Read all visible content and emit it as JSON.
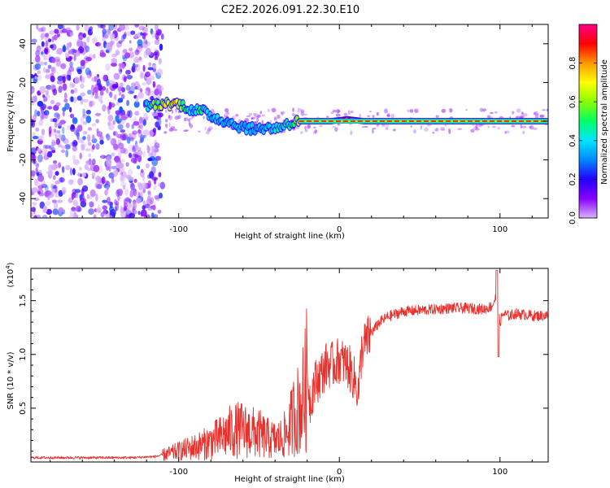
{
  "figure_title": "C2E2.2026.091.22.30.E10",
  "chart_data": [
    {
      "type": "heatmap",
      "title": "C2E2.2026.091.22.30.E10",
      "xlabel": "Height of straight line (km)",
      "ylabel": "Frequency (Hz)",
      "xlim": [
        -192,
        130
      ],
      "ylim": [
        -50,
        50
      ],
      "xticks": [
        -100,
        0,
        100
      ],
      "xtick_labels": [
        "-100",
        "0",
        "100"
      ],
      "yticks": [
        -40,
        -20,
        0,
        20,
        40
      ],
      "ytick_labels": [
        "-40",
        "-20",
        "0",
        "20",
        "40"
      ],
      "colorbar": {
        "label": "Normalized spectral amplitude",
        "range": [
          0.0,
          1.0
        ],
        "ticks": [
          0.0,
          0.2,
          0.4,
          0.6,
          0.8
        ],
        "tick_labels": [
          "0.0",
          "0.2",
          "0.4",
          "0.6",
          "0.8"
        ],
        "colormap": [
          "#d9b3ff",
          "#8800ff",
          "#2200ff",
          "#0088ff",
          "#00e5ff",
          "#00ff66",
          "#88ff00",
          "#ffff00",
          "#ff9900",
          "#ff0000",
          "#ff0088"
        ]
      },
      "noise_region_x": [
        -192,
        -110
      ],
      "ridge": [
        {
          "x": -120,
          "freq": 8,
          "amp": 0.45
        },
        {
          "x": -110,
          "freq": 9,
          "amp": 0.7
        },
        {
          "x": -100,
          "freq": 9,
          "amp": 0.72
        },
        {
          "x": -92,
          "freq": 6,
          "amp": 0.4
        },
        {
          "x": -85,
          "freq": 5,
          "amp": 0.55
        },
        {
          "x": -80,
          "freq": 3,
          "amp": 0.4
        },
        {
          "x": -75,
          "freq": 1,
          "amp": 0.45
        },
        {
          "x": -70,
          "freq": 0,
          "amp": 0.4
        },
        {
          "x": -65,
          "freq": -2,
          "amp": 0.45
        },
        {
          "x": -60,
          "freq": -3,
          "amp": 0.4
        },
        {
          "x": -55,
          "freq": -4,
          "amp": 0.4
        },
        {
          "x": -50,
          "freq": -4,
          "amp": 0.4
        },
        {
          "x": -45,
          "freq": -3,
          "amp": 0.45
        },
        {
          "x": -40,
          "freq": -4,
          "amp": 0.45
        },
        {
          "x": -35,
          "freq": -2,
          "amp": 0.5
        },
        {
          "x": -30,
          "freq": -1,
          "amp": 0.5
        },
        {
          "x": -25,
          "freq": 0,
          "amp": 0.8
        },
        {
          "x": -15,
          "freq": 0,
          "amp": 0.85
        },
        {
          "x": -5,
          "freq": 0,
          "amp": 0.88
        },
        {
          "x": 5,
          "freq": 1,
          "amp": 0.9
        },
        {
          "x": 15,
          "freq": 0,
          "amp": 0.88
        },
        {
          "x": 30,
          "freq": 0,
          "amp": 0.9
        },
        {
          "x": 50,
          "freq": 0,
          "amp": 0.9
        },
        {
          "x": 70,
          "freq": 0,
          "amp": 0.9
        },
        {
          "x": 90,
          "freq": 0,
          "amp": 0.9
        },
        {
          "x": 110,
          "freq": 0,
          "amp": 0.9
        },
        {
          "x": 130,
          "freq": 0,
          "amp": 0.9
        }
      ]
    },
    {
      "type": "line",
      "xlabel": "Height of straight line (km)",
      "ylabel": "SNR (10 * v/v)",
      "y_multiplier_label": "(x10",
      "y_multiplier_exp": "4",
      "xlim": [
        -192,
        130
      ],
      "ylim": [
        0,
        1.8
      ],
      "xticks": [
        -100,
        0,
        100
      ],
      "xtick_labels": [
        "-100",
        "0",
        "100"
      ],
      "yticks": [
        0.5,
        1.0,
        1.5
      ],
      "ytick_labels": [
        "0.5",
        "1.0",
        "1.5"
      ],
      "color": "#e8302c",
      "series": [
        {
          "name": "SNR",
          "x": [
            -192,
            -170,
            -150,
            -130,
            -115,
            -105,
            -95,
            -85,
            -75,
            -68,
            -62,
            -56,
            -50,
            -45,
            -40,
            -36,
            -32,
            -28,
            -25,
            -22,
            -20,
            -18,
            -16,
            -12,
            -8,
            -4,
            0,
            3,
            6,
            9,
            12,
            14,
            16,
            20,
            25,
            30,
            40,
            50,
            60,
            70,
            80,
            90,
            95,
            98,
            100,
            102,
            105,
            110,
            120,
            130
          ],
          "values": [
            0.04,
            0.04,
            0.04,
            0.04,
            0.05,
            0.08,
            0.12,
            0.16,
            0.22,
            0.28,
            0.3,
            0.28,
            0.26,
            0.22,
            0.2,
            0.22,
            0.28,
            0.45,
            0.5,
            0.6,
            0.8,
            0.55,
            0.72,
            0.8,
            0.9,
            0.9,
            0.95,
            0.92,
            0.88,
            0.78,
            0.65,
            1.05,
            1.1,
            1.2,
            1.3,
            1.35,
            1.4,
            1.41,
            1.42,
            1.43,
            1.43,
            1.42,
            1.45,
            1.55,
            1.3,
            1.38,
            1.36,
            1.38,
            1.36,
            1.36
          ]
        }
      ]
    }
  ]
}
